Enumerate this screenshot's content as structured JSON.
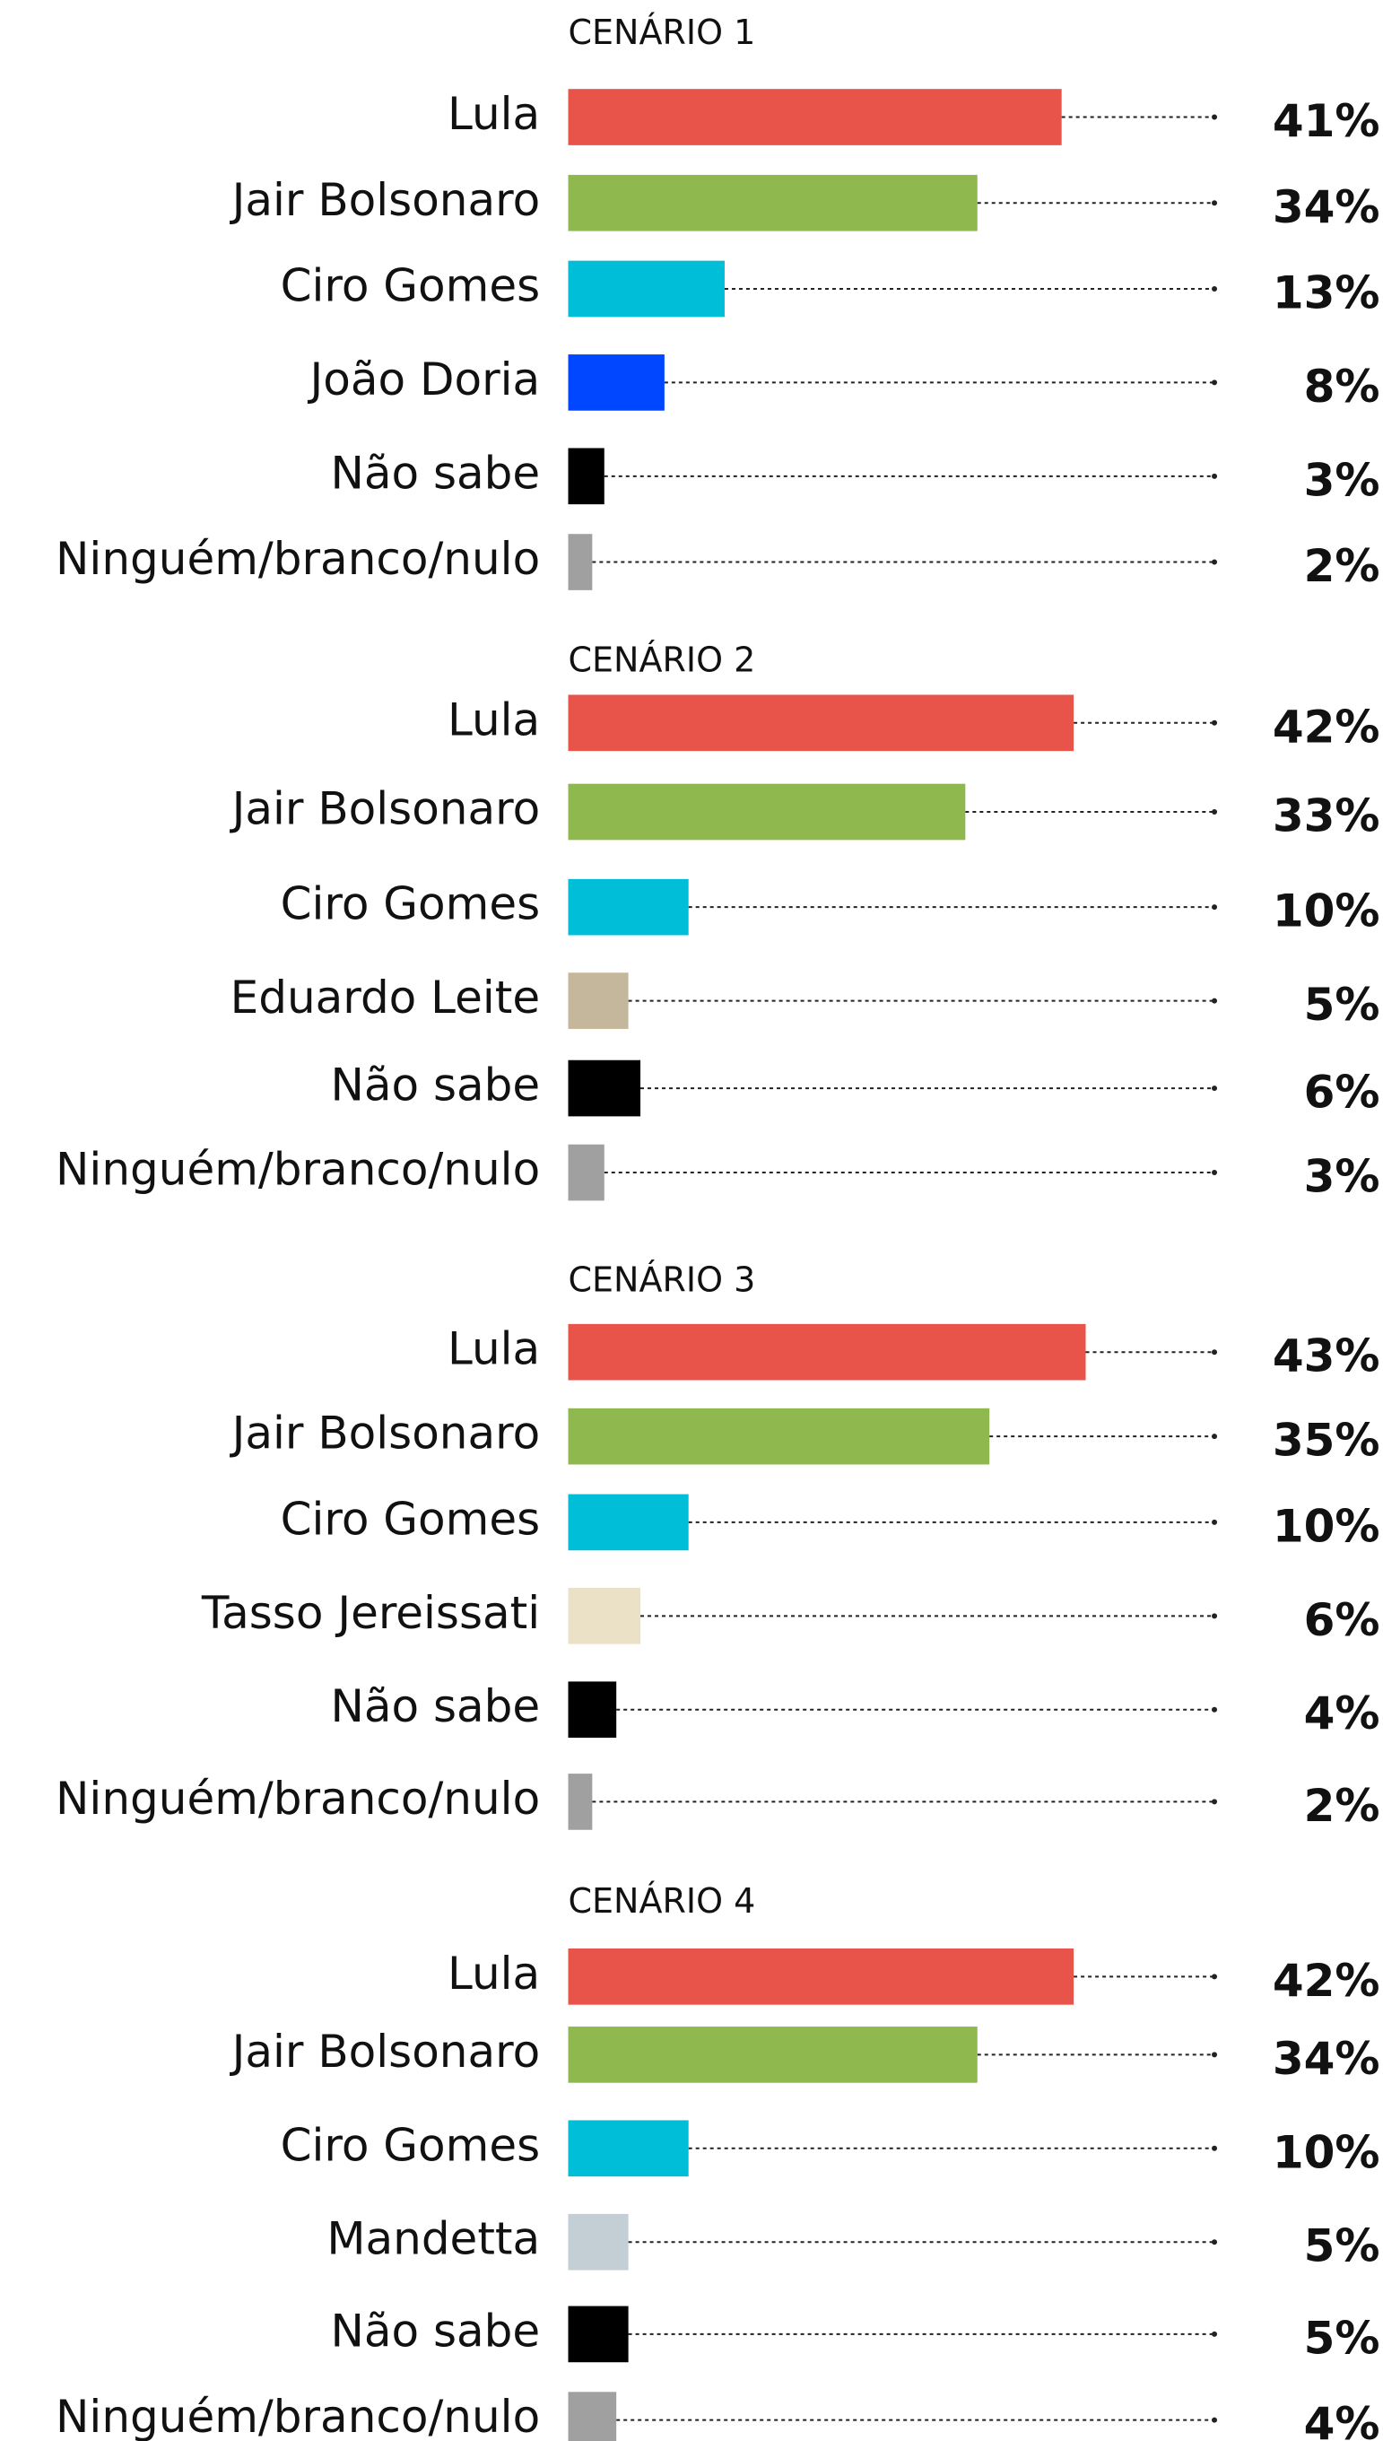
{
  "chart_data": [
    {
      "type": "bar",
      "title": "CENÁRIO 1",
      "categories": [
        "Lula",
        "Jair Bolsonaro",
        "Ciro Gomes",
        "João Doria",
        "Não sabe",
        "Ninguém/branco/nulo"
      ],
      "values": [
        41,
        34,
        13,
        8,
        3,
        2
      ],
      "value_labels": [
        "41%",
        "34%",
        "13%",
        "8%",
        "3%",
        "2%"
      ],
      "colors": [
        "#e8534a",
        "#8fb84f",
        "#00bdd8",
        "#0047ff",
        "#000000",
        "#a0a0a0"
      ]
    },
    {
      "type": "bar",
      "title": "CENÁRIO 2",
      "categories": [
        "Lula",
        "Jair Bolsonaro",
        "Ciro Gomes",
        "Eduardo Leite",
        "Não sabe",
        "Ninguém/branco/nulo"
      ],
      "values": [
        42,
        33,
        10,
        5,
        6,
        3
      ],
      "value_labels": [
        "42%",
        "33%",
        "10%",
        "5%",
        "6%",
        "3%"
      ],
      "colors": [
        "#e8534a",
        "#8fb84f",
        "#00bdd8",
        "#c5b79b",
        "#000000",
        "#a0a0a0"
      ]
    },
    {
      "type": "bar",
      "title": "CENÁRIO 3",
      "categories": [
        "Lula",
        "Jair Bolsonaro",
        "Ciro Gomes",
        "Tasso Jereissati",
        "Não sabe",
        "Ninguém/branco/nulo"
      ],
      "values": [
        43,
        35,
        10,
        6,
        4,
        2
      ],
      "value_labels": [
        "43%",
        "35%",
        "10%",
        "6%",
        "4%",
        "2%"
      ],
      "colors": [
        "#e8534a",
        "#8fb84f",
        "#00bdd8",
        "#ebe1c6",
        "#000000",
        "#a0a0a0"
      ]
    },
    {
      "type": "bar",
      "title": "CENÁRIO 4",
      "categories": [
        "Lula",
        "Jair Bolsonaro",
        "Ciro Gomes",
        "Mandetta",
        "Não sabe",
        "Ninguém/branco/nulo"
      ],
      "values": [
        42,
        34,
        10,
        5,
        5,
        4
      ],
      "value_labels": [
        "42%",
        "34%",
        "10%",
        "5%",
        "5%",
        "4%"
      ],
      "colors": [
        "#e8534a",
        "#8fb84f",
        "#00bdd8",
        "#c3cfd4",
        "#000000",
        "#a0a0a0"
      ]
    }
  ]
}
